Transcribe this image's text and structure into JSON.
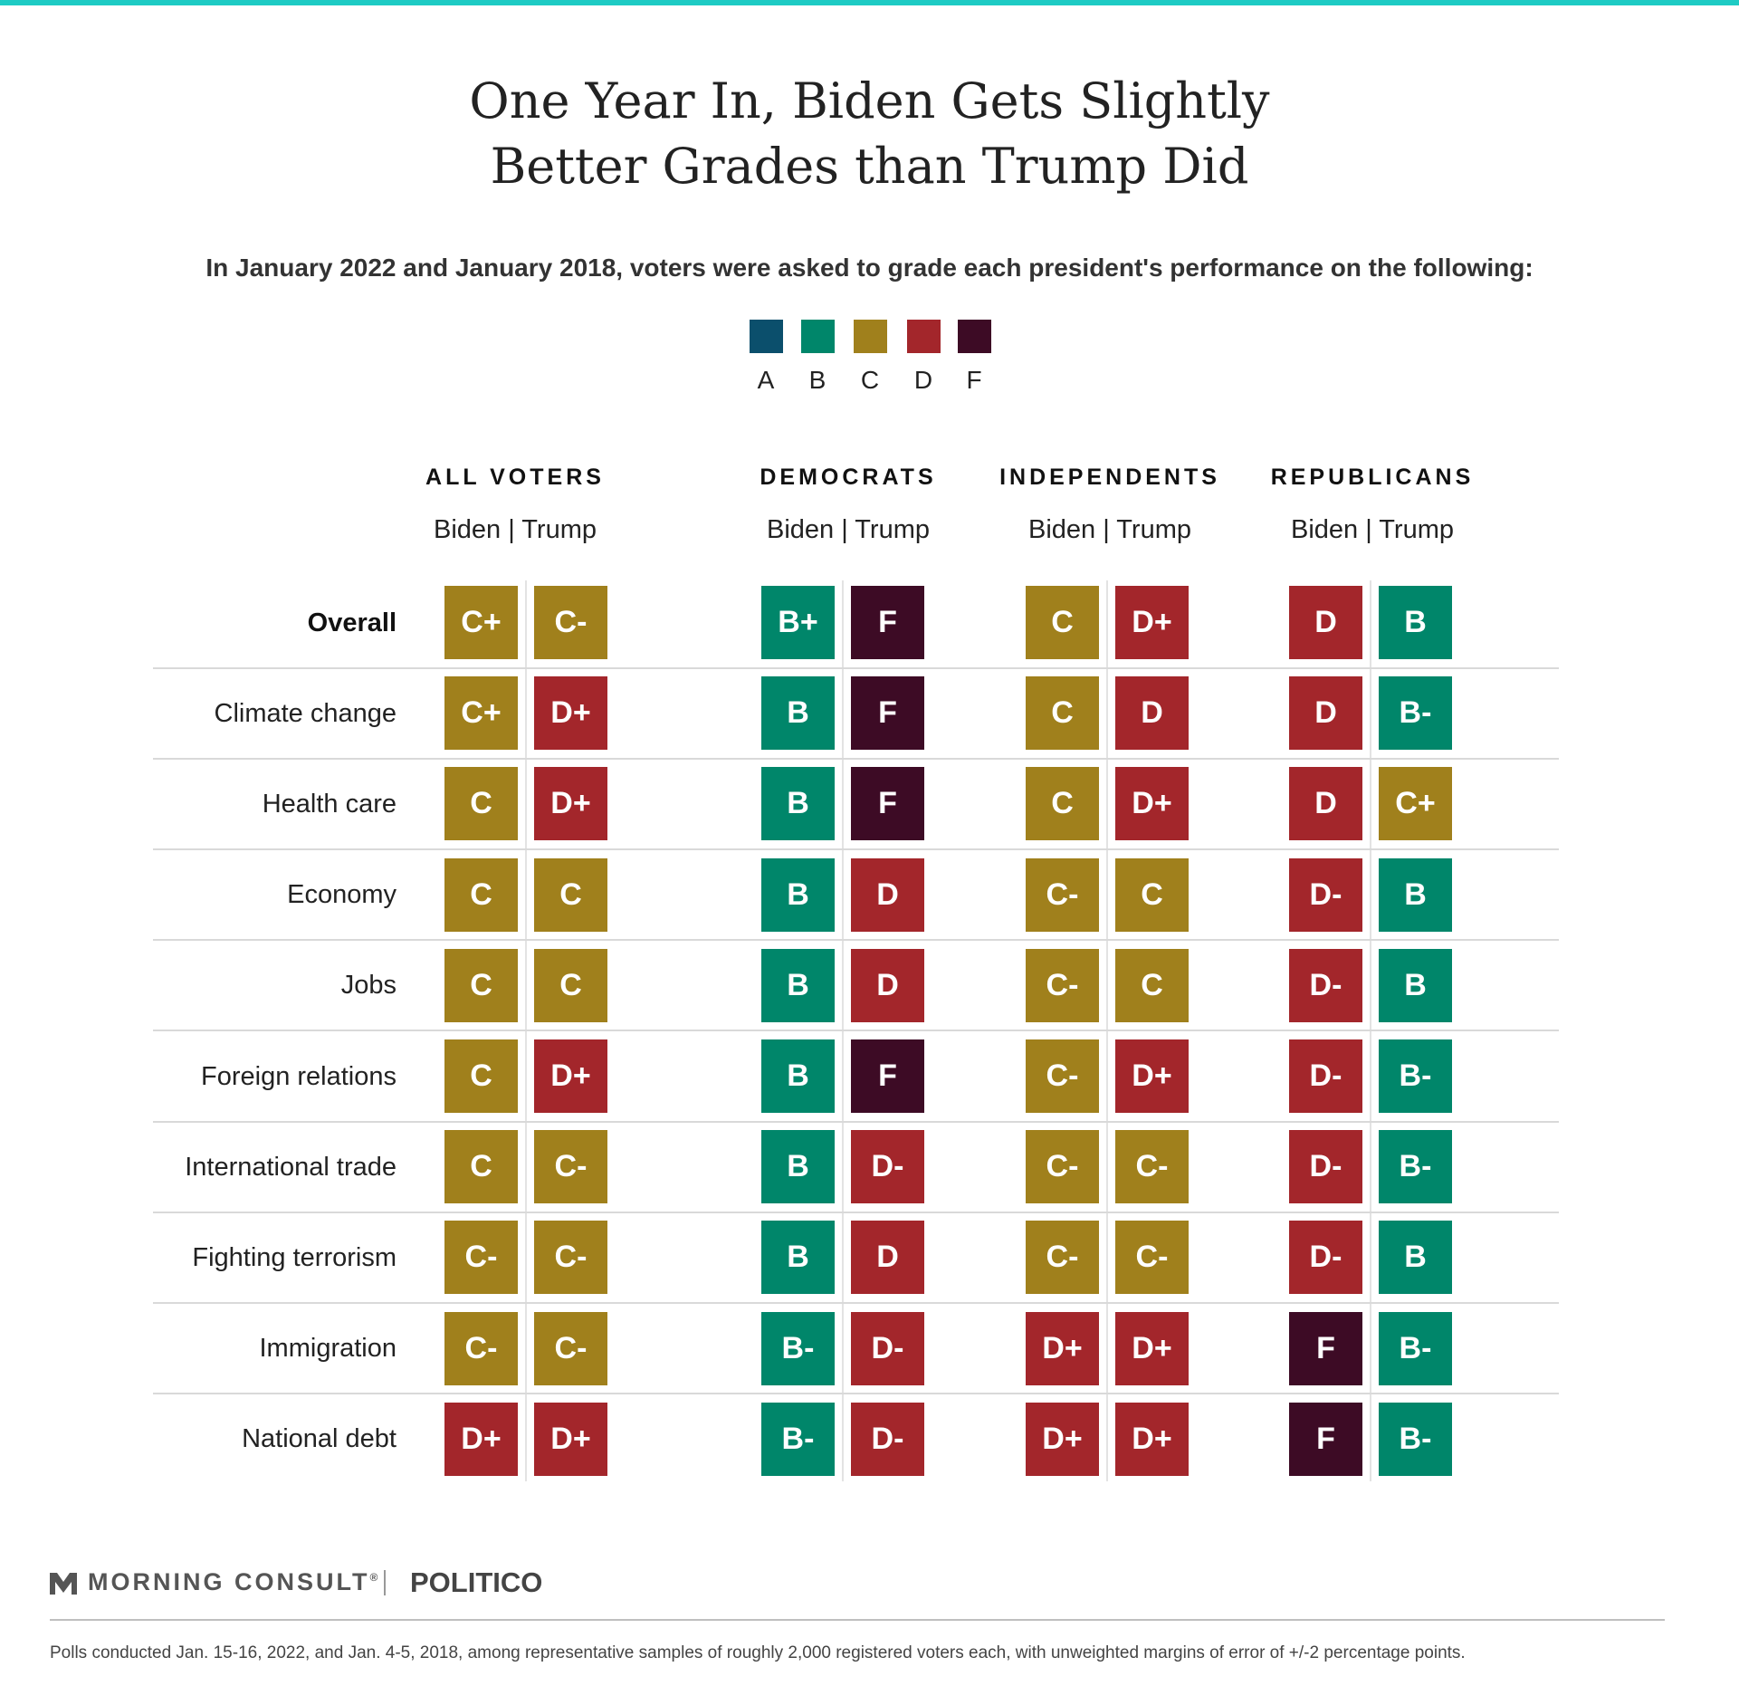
{
  "title_line1": "One Year In, Biden Gets Slightly",
  "title_line2": "Better Grades than Trump Did",
  "subtitle": "In January 2022 and January 2018, voters were asked to grade each president's performance on the following:",
  "legend": [
    {
      "label": "A",
      "color": "#0b4f6c"
    },
    {
      "label": "B",
      "color": "#00866a"
    },
    {
      "label": "C",
      "color": "#a0801c"
    },
    {
      "label": "D",
      "color": "#a3262b"
    },
    {
      "label": "F",
      "color": "#3d0b25"
    }
  ],
  "colors": {
    "A": "#0b4f6c",
    "B": "#00866a",
    "C": "#a0801c",
    "C_dark": "#8c6e1f",
    "D": "#a3262b",
    "F": "#3d0b25"
  },
  "chart_data": {
    "type": "table",
    "groups": [
      "ALL VOTERS",
      "DEMOCRATS",
      "INDEPENDENTS",
      "REPUBLICANS"
    ],
    "subheader": "Biden | Trump",
    "series": [
      "Biden",
      "Trump"
    ],
    "rows": [
      {
        "label": "Overall",
        "bold": true,
        "grades": [
          [
            "C+",
            "C-"
          ],
          [
            "B+",
            "F"
          ],
          [
            "C",
            "D+"
          ],
          [
            "D",
            "B"
          ]
        ]
      },
      {
        "label": "Climate change",
        "grades": [
          [
            "C+",
            "D+"
          ],
          [
            "B",
            "F"
          ],
          [
            "C",
            "D"
          ],
          [
            "D",
            "B-"
          ]
        ]
      },
      {
        "label": "Health care",
        "grades": [
          [
            "C",
            "D+"
          ],
          [
            "B",
            "F"
          ],
          [
            "C",
            "D+"
          ],
          [
            "D",
            "C+"
          ]
        ]
      },
      {
        "label": "Economy",
        "grades": [
          [
            "C",
            "C"
          ],
          [
            "B",
            "D"
          ],
          [
            "C-",
            "C"
          ],
          [
            "D-",
            "B"
          ]
        ]
      },
      {
        "label": "Jobs",
        "grades": [
          [
            "C",
            "C"
          ],
          [
            "B",
            "D"
          ],
          [
            "C-",
            "C"
          ],
          [
            "D-",
            "B"
          ]
        ]
      },
      {
        "label": "Foreign relations",
        "grades": [
          [
            "C",
            "D+"
          ],
          [
            "B",
            "F"
          ],
          [
            "C-",
            "D+"
          ],
          [
            "D-",
            "B-"
          ]
        ]
      },
      {
        "label": "International trade",
        "grades": [
          [
            "C",
            "C-"
          ],
          [
            "B",
            "D-"
          ],
          [
            "C-",
            "C-"
          ],
          [
            "D-",
            "B-"
          ]
        ]
      },
      {
        "label": "Fighting terrorism",
        "grades": [
          [
            "C-",
            "C-"
          ],
          [
            "B",
            "D"
          ],
          [
            "C-",
            "C-"
          ],
          [
            "D-",
            "B"
          ]
        ]
      },
      {
        "label": "Immigration",
        "grades": [
          [
            "C-",
            "C-"
          ],
          [
            "B-",
            "D-"
          ],
          [
            "D+",
            "D+"
          ],
          [
            "F",
            "B-"
          ]
        ]
      },
      {
        "label": "National debt",
        "grades": [
          [
            "D+",
            "D+"
          ],
          [
            "B-",
            "D-"
          ],
          [
            "D+",
            "D+"
          ],
          [
            "F",
            "B-"
          ]
        ]
      }
    ]
  },
  "brand": {
    "morning_consult": "MORNING CONSULT",
    "trademark": "®",
    "separator": "|",
    "politico": "POLITICO"
  },
  "footnote": "Polls conducted Jan. 15-16, 2022, and Jan. 4-5, 2018, among representative samples of roughly 2,000 registered voters each, with unweighted margins of error of +/-2 percentage points."
}
